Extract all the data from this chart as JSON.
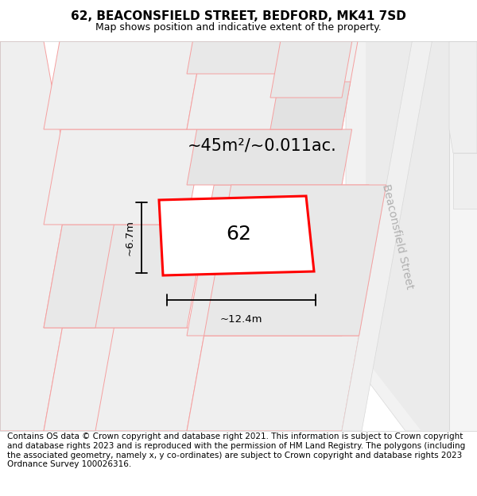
{
  "title": "62, BEACONSFIELD STREET, BEDFORD, MK41 7SD",
  "subtitle": "Map shows position and indicative extent of the property.",
  "area_label": "~45m²/~0.011ac.",
  "property_number": "62",
  "dim_width": "~12.4m",
  "dim_height": "~6.7m",
  "street_label": "Beaconsfield Street",
  "footer": "Contains OS data © Crown copyright and database right 2021. This information is subject to Crown copyright and database rights 2023 and is reproduced with the permission of HM Land Registry. The polygons (including the associated geometry, namely x, y co-ordinates) are subject to Crown copyright and database rights 2023 Ordnance Survey 100026316.",
  "bg_color": "#f5f5f5",
  "plot_fill": "#e8e8e8",
  "plot_edge": "#ff0000",
  "pink_line_color": "#f5a0a0",
  "title_fontsize": 11,
  "subtitle_fontsize": 9,
  "footer_fontsize": 7.5,
  "area_fontsize": 15,
  "prop_num_fontsize": 18,
  "dim_fontsize": 9.5,
  "street_fontsize": 10
}
